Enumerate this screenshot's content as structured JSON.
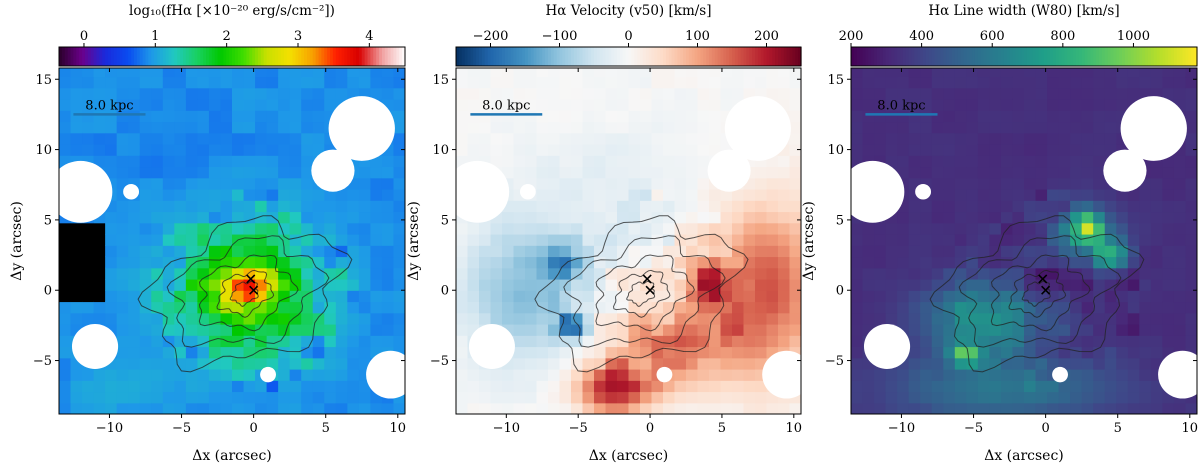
{
  "chart_data": [
    {
      "type": "heatmap",
      "map_id": "flux",
      "title": "log₁₀(fHα [×10⁻²⁰ erg/s/cm⁻²])",
      "colorbar": {
        "label": "log₁₀(fHα [×10⁻²⁰ erg/s/cm⁻²])",
        "range": [
          -0.35,
          4.5
        ],
        "ticks": [
          0,
          1,
          2,
          3,
          4
        ],
        "tick_labels": [
          "0",
          "1",
          "2",
          "3",
          "4"
        ],
        "cmap": [
          "#2a002a",
          "#6b008b",
          "#1a2adc",
          "#0a4cf0",
          "#1e98e8",
          "#20c8c0",
          "#18d060",
          "#00c800",
          "#40dd00",
          "#c8e000",
          "#f4e000",
          "#f8a000",
          "#ff2000",
          "#d80000",
          "#f0a0a0",
          "#ffffff"
        ]
      },
      "xlabel": "Δx (arcsec)",
      "ylabel": "Δy (arcsec)",
      "xlim": [
        -13.5,
        10.5
      ],
      "ylim": [
        -8.8,
        15.8
      ],
      "xticks": [
        -10,
        -5,
        0,
        5,
        10
      ],
      "yticks": [
        -5,
        0,
        5,
        10,
        15
      ],
      "xtick_labels": [
        "−10",
        "−5",
        "0",
        "5",
        "10"
      ],
      "ytick_labels": [
        "−5",
        "0",
        "5",
        "10",
        "15"
      ],
      "scalebar_label": "8.0 kpc",
      "markers": [
        {
          "x": -0.2,
          "y": 0.8
        },
        {
          "x": 0.0,
          "y": 0.0
        }
      ],
      "background_value": 0.9,
      "features": [
        {
          "x": -6.0,
          "y": 10.0,
          "sx": 6.0,
          "sy": 3.0,
          "v": -0.05
        },
        {
          "x": 7.0,
          "y": -1.0,
          "sx": 3.0,
          "sy": 5.0,
          "v": -0.1
        },
        {
          "x": -8.0,
          "y": -7.0,
          "sx": 4.0,
          "sy": 2.0,
          "v": 0.15
        },
        {
          "x": 0.0,
          "y": 0.0,
          "sx": 5.5,
          "sy": 4.5,
          "v": 1.1
        },
        {
          "x": -1.0,
          "y": 0.0,
          "sx": 3.2,
          "sy": 2.6,
          "v": 0.6
        },
        {
          "x": -0.3,
          "y": 0.3,
          "sx": 1.4,
          "sy": 1.2,
          "v": 1.4
        }
      ],
      "dark_patch": {
        "x": [
          -13.5,
          -10.5
        ],
        "y": [
          -1.0,
          5.0
        ],
        "value": -0.4
      },
      "blank_holes": [
        {
          "x": -12.0,
          "y": 7.0,
          "r": 2.2
        },
        {
          "x": 7.5,
          "y": 11.5,
          "r": 2.3
        },
        {
          "x": 5.5,
          "y": 8.5,
          "r": 1.5
        },
        {
          "x": -8.5,
          "y": 7.0,
          "r": 0.55
        },
        {
          "x": 1.0,
          "y": -6.0,
          "r": 0.55
        },
        {
          "x": -11.0,
          "y": -4.0,
          "r": 1.6
        },
        {
          "x": 9.5,
          "y": -6.0,
          "r": 1.7
        }
      ],
      "contours": [
        {
          "rx": 6.5,
          "ry": 5.0
        },
        {
          "rx": 5.0,
          "ry": 3.7
        },
        {
          "rx": 3.2,
          "ry": 2.5
        },
        {
          "rx": 1.8,
          "ry": 1.5
        },
        {
          "rx": 0.9,
          "ry": 0.8
        }
      ]
    },
    {
      "type": "heatmap",
      "map_id": "velocity",
      "title": "Hα Velocity (v50) [km/s]",
      "colorbar": {
        "label": "Hα Velocity (v50) [km/s]",
        "range": [
          -250,
          250
        ],
        "ticks": [
          -200,
          -100,
          0,
          100,
          200
        ],
        "tick_labels": [
          "−200",
          "−100",
          "0",
          "100",
          "200"
        ],
        "cmap": [
          "#053061",
          "#2166ac",
          "#4393c3",
          "#92c5de",
          "#d1e5f0",
          "#f7f7f7",
          "#fddbc7",
          "#f4a582",
          "#d6604d",
          "#b2182b",
          "#67001f"
        ]
      },
      "xlabel": "Δx (arcsec)",
      "ylabel": "Δy (arcsec)",
      "xlim": [
        -13.5,
        10.5
      ],
      "ylim": [
        -8.8,
        15.8
      ],
      "xticks": [
        -10,
        -5,
        0,
        5,
        10
      ],
      "yticks": [
        -5,
        0,
        5,
        10,
        15
      ],
      "xtick_labels": [
        "−10",
        "−5",
        "0",
        "5",
        "10"
      ],
      "ytick_labels": [
        "−5",
        "0",
        "5",
        "10",
        "15"
      ],
      "scalebar_label": "8.0 kpc",
      "markers": [
        {
          "x": -0.2,
          "y": 0.8
        },
        {
          "x": 0.0,
          "y": 0.0
        }
      ],
      "background_value": 0,
      "features": [
        {
          "x": -9.0,
          "y": 0.0,
          "sx": 4.0,
          "sy": 5.0,
          "v": -110
        },
        {
          "x": -6.0,
          "y": 2.0,
          "sx": 1.5,
          "sy": 1.5,
          "v": -120
        },
        {
          "x": -5.5,
          "y": -2.5,
          "sx": 1.2,
          "sy": 1.0,
          "v": -180
        },
        {
          "x": -3.0,
          "y": 8.0,
          "sx": 6.0,
          "sy": 4.0,
          "v": -25
        },
        {
          "x": 8.0,
          "y": 0.0,
          "sx": 4.0,
          "sy": 6.0,
          "v": 160
        },
        {
          "x": 1.5,
          "y": -4.0,
          "sx": 4.0,
          "sy": 3.0,
          "v": 130
        },
        {
          "x": -2.5,
          "y": -7.0,
          "sx": 2.5,
          "sy": 1.8,
          "v": 200
        },
        {
          "x": 4.0,
          "y": 0.5,
          "sx": 1.5,
          "sy": 1.5,
          "v": 150
        }
      ],
      "blank_holes": [
        {
          "x": -12.0,
          "y": 7.0,
          "r": 2.2
        },
        {
          "x": 7.5,
          "y": 11.5,
          "r": 2.3
        },
        {
          "x": 5.5,
          "y": 8.5,
          "r": 1.5
        },
        {
          "x": -8.5,
          "y": 7.0,
          "r": 0.55
        },
        {
          "x": 1.0,
          "y": -6.0,
          "r": 0.55
        },
        {
          "x": -11.0,
          "y": -4.0,
          "r": 1.6
        },
        {
          "x": 9.5,
          "y": -6.0,
          "r": 1.7
        }
      ],
      "contours": [
        {
          "rx": 6.5,
          "ry": 5.0
        },
        {
          "rx": 5.0,
          "ry": 3.7
        },
        {
          "rx": 3.2,
          "ry": 2.5
        },
        {
          "rx": 1.8,
          "ry": 1.5
        },
        {
          "rx": 0.9,
          "ry": 0.8
        }
      ]
    },
    {
      "type": "heatmap",
      "map_id": "linewidth",
      "title": "Hα Line width (W80) [km/s]",
      "colorbar": {
        "label": "Hα Line width (W80) [km/s]",
        "range": [
          200,
          1180
        ],
        "ticks": [
          200,
          400,
          600,
          800,
          1000
        ],
        "tick_labels": [
          "200",
          "400",
          "600",
          "800",
          "1000"
        ],
        "cmap": [
          "#440154",
          "#482878",
          "#3e4989",
          "#31688e",
          "#26828e",
          "#1f9e89",
          "#35b779",
          "#6ece58",
          "#b5de2b",
          "#fde725"
        ]
      },
      "xlabel": "Δx (arcsec)",
      "ylabel": "Δy (arcsec)",
      "xlim": [
        -13.5,
        10.5
      ],
      "ylim": [
        -8.8,
        15.8
      ],
      "xticks": [
        -10,
        -5,
        0,
        5,
        10
      ],
      "yticks": [
        -5,
        0,
        5,
        10,
        15
      ],
      "xtick_labels": [
        "−10",
        "−5",
        "0",
        "5",
        "10"
      ],
      "ytick_labels": [
        "−5",
        "0",
        "5",
        "10",
        "15"
      ],
      "scalebar_label": "8.0 kpc",
      "markers": [
        {
          "x": -0.2,
          "y": 0.8
        },
        {
          "x": 0.0,
          "y": 0.0
        }
      ],
      "background_value": 330,
      "features": [
        {
          "x": -3.0,
          "y": -7.0,
          "sx": 8.0,
          "sy": 2.5,
          "v": 250
        },
        {
          "x": -4.0,
          "y": -2.0,
          "sx": 4.5,
          "sy": 2.5,
          "v": 380
        },
        {
          "x": 2.5,
          "y": 4.0,
          "sx": 2.5,
          "sy": 2.0,
          "v": 350
        },
        {
          "x": 0.0,
          "y": 0.0,
          "sx": 2.5,
          "sy": 2.0,
          "v": -80
        },
        {
          "x": 3.0,
          "y": 4.5,
          "sx": 1.0,
          "sy": 1.0,
          "v": 450
        },
        {
          "x": -5.5,
          "y": -4.5,
          "sx": 1.0,
          "sy": 0.8,
          "v": 500
        },
        {
          "x": 4.5,
          "y": 2.5,
          "sx": 1.2,
          "sy": 1.0,
          "v": 400
        }
      ],
      "blank_holes": [
        {
          "x": -12.0,
          "y": 7.0,
          "r": 2.2
        },
        {
          "x": 7.5,
          "y": 11.5,
          "r": 2.3
        },
        {
          "x": 5.5,
          "y": 8.5,
          "r": 1.5
        },
        {
          "x": -8.5,
          "y": 7.0,
          "r": 0.55
        },
        {
          "x": 1.0,
          "y": -6.0,
          "r": 0.55
        },
        {
          "x": -11.0,
          "y": -4.0,
          "r": 1.6
        },
        {
          "x": 9.5,
          "y": -6.0,
          "r": 1.7
        }
      ],
      "contours": [
        {
          "rx": 6.5,
          "ry": 5.0
        },
        {
          "rx": 5.0,
          "ry": 3.7
        },
        {
          "rx": 3.2,
          "ry": 2.5
        },
        {
          "rx": 1.8,
          "ry": 1.5
        },
        {
          "rx": 0.9,
          "ry": 0.8
        }
      ]
    }
  ]
}
